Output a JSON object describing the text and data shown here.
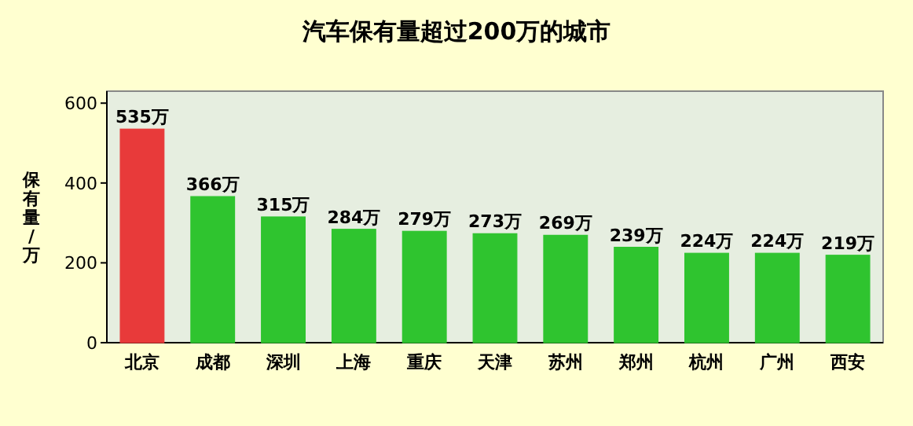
{
  "chart_data": {
    "type": "bar",
    "title": "汽车保有量超过200万的城市",
    "ylabel": "保有量/万",
    "categories": [
      "北京",
      "成都",
      "深圳",
      "上海",
      "重庆",
      "天津",
      "苏州",
      "郑州",
      "杭州",
      "广州",
      "西安"
    ],
    "values": [
      535,
      366,
      315,
      284,
      279,
      273,
      269,
      239,
      224,
      224,
      219
    ],
    "value_labels": [
      "535万",
      "366万",
      "315万",
      "284万",
      "279万",
      "273万",
      "269万",
      "239万",
      "224万",
      "224万",
      "219万"
    ],
    "colors": [
      "#e83a3a",
      "#2fc42f",
      "#2fc42f",
      "#2fc42f",
      "#2fc42f",
      "#2fc42f",
      "#2fc42f",
      "#2fc42f",
      "#2fc42f",
      "#2fc42f",
      "#2fc42f"
    ],
    "ylim": [
      0,
      630
    ],
    "yticks": [
      0,
      200,
      400,
      600
    ]
  }
}
